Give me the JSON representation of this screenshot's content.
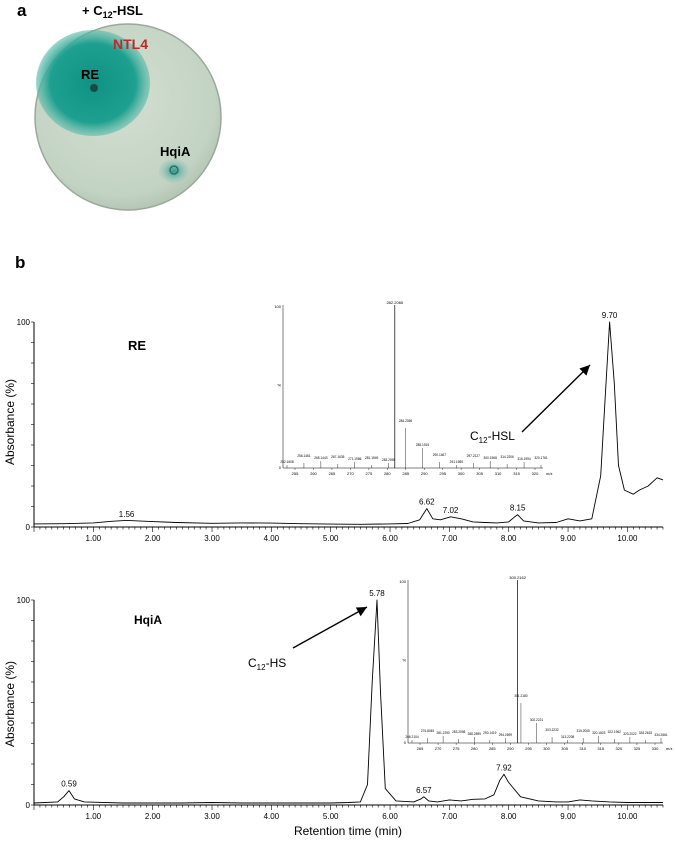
{
  "panel_a": {
    "letter": "a",
    "header_prefix": "+ C",
    "header_sub": "12",
    "header_suffix": "-HSL",
    "strain_label": "NTL4",
    "strain_color": "#c0262c",
    "samples": [
      "RE",
      "HqiA"
    ],
    "colors": {
      "agar": "#c6d6c6",
      "stain": "#1a9c8c"
    }
  },
  "panel_b": {
    "letter": "b",
    "xlabel": "Retention time (min)",
    "ylabel": "Absorbance (%)"
  },
  "chart_data": [
    {
      "type": "line",
      "label": "RE",
      "xlim": [
        0,
        10.6
      ],
      "ylim": [
        0,
        100
      ],
      "x_ticks": [
        1,
        2,
        3,
        4,
        5,
        6,
        7,
        8,
        9,
        10
      ],
      "x_tick_labels": [
        "1.00",
        "2.00",
        "3.00",
        "4.00",
        "5.00",
        "6.00",
        "7.00",
        "8.00",
        "9.00",
        "10.00"
      ],
      "y_tick_labels": [
        "100",
        "0"
      ],
      "peaks": [
        {
          "x": 1.56,
          "y": 3,
          "label": "1.56"
        },
        {
          "x": 6.62,
          "y": 9,
          "label": "6.62"
        },
        {
          "x": 7.02,
          "y": 5,
          "label": "7.02"
        },
        {
          "x": 8.15,
          "y": 6,
          "label": "8.15"
        },
        {
          "x": 9.7,
          "y": 100,
          "label": "9.70"
        }
      ],
      "annotation": {
        "text_main": "C",
        "text_sub": "12",
        "text_end": "-HSL",
        "x": 9.7
      },
      "trace": [
        [
          0,
          1.5
        ],
        [
          0.5,
          1.6
        ],
        [
          1.0,
          2.0
        ],
        [
          1.3,
          2.8
        ],
        [
          1.56,
          3.2
        ],
        [
          1.9,
          2.8
        ],
        [
          2.4,
          2.2
        ],
        [
          3.0,
          1.8
        ],
        [
          3.5,
          2.0
        ],
        [
          4.0,
          1.9
        ],
        [
          4.5,
          1.6
        ],
        [
          5.0,
          1.4
        ],
        [
          5.5,
          1.3
        ],
        [
          6.0,
          1.5
        ],
        [
          6.3,
          1.7
        ],
        [
          6.5,
          3.5
        ],
        [
          6.62,
          9
        ],
        [
          6.72,
          4
        ],
        [
          6.85,
          3.5
        ],
        [
          7.02,
          5
        ],
        [
          7.2,
          4
        ],
        [
          7.4,
          2.5
        ],
        [
          7.6,
          2.2
        ],
        [
          7.8,
          2
        ],
        [
          8.0,
          2.5
        ],
        [
          8.1,
          5
        ],
        [
          8.15,
          6
        ],
        [
          8.25,
          3
        ],
        [
          8.5,
          2
        ],
        [
          8.8,
          2.2
        ],
        [
          9.0,
          4
        ],
        [
          9.2,
          3
        ],
        [
          9.4,
          4
        ],
        [
          9.55,
          25
        ],
        [
          9.62,
          60
        ],
        [
          9.7,
          100
        ],
        [
          9.78,
          70
        ],
        [
          9.85,
          30
        ],
        [
          9.95,
          18
        ],
        [
          10.1,
          16
        ],
        [
          10.2,
          18
        ],
        [
          10.35,
          20
        ],
        [
          10.5,
          24
        ],
        [
          10.6,
          23
        ]
      ],
      "inset": {
        "x_tick_labels": [
          "255",
          "260",
          "265",
          "270",
          "275",
          "280",
          "285",
          "290",
          "295",
          "300",
          "305",
          "310",
          "315",
          "320"
        ],
        "y_tick_labels": [
          "100",
          "%",
          "0"
        ],
        "main_peak_label": "282.2065",
        "peak_labels": [
          "252.1608",
          "256.1461",
          "265.1443",
          "267.1635",
          "271.1986",
          "281.1949",
          "283.2098",
          "284.2056",
          "285.1915",
          "290.1467",
          "291.1985",
          "297.2127",
          "300.1968",
          "314.2206",
          "316.1994",
          "320.1761"
        ],
        "unit": "m/z"
      }
    },
    {
      "type": "line",
      "label": "HqiA",
      "xlim": [
        0,
        10.6
      ],
      "ylim": [
        0,
        100
      ],
      "x_ticks": [
        1,
        2,
        3,
        4,
        5,
        6,
        7,
        8,
        9,
        10
      ],
      "x_tick_labels": [
        "1.00",
        "2.00",
        "3.00",
        "4.00",
        "5.00",
        "6.00",
        "7.00",
        "8.00",
        "9.00",
        "10.00"
      ],
      "y_tick_labels": [
        "100",
        "0"
      ],
      "peaks": [
        {
          "x": 0.59,
          "y": 7,
          "label": "0.59"
        },
        {
          "x": 5.78,
          "y": 100,
          "label": "5.78"
        },
        {
          "x": 6.57,
          "y": 4,
          "label": "6.57"
        },
        {
          "x": 7.92,
          "y": 15,
          "label": "7.92"
        }
      ],
      "annotation": {
        "text_main": "C",
        "text_sub": "12",
        "text_end": "-HS",
        "x": 5.78
      },
      "trace": [
        [
          0,
          1
        ],
        [
          0.4,
          1.5
        ],
        [
          0.5,
          4
        ],
        [
          0.59,
          7
        ],
        [
          0.68,
          3
        ],
        [
          0.85,
          1.5
        ],
        [
          1.5,
          1
        ],
        [
          2.5,
          1
        ],
        [
          3.0,
          1.2
        ],
        [
          3.5,
          1
        ],
        [
          4.0,
          1
        ],
        [
          4.5,
          1
        ],
        [
          5.0,
          1
        ],
        [
          5.3,
          1.2
        ],
        [
          5.5,
          1.5
        ],
        [
          5.62,
          10
        ],
        [
          5.7,
          60
        ],
        [
          5.78,
          100
        ],
        [
          5.84,
          55
        ],
        [
          5.92,
          8
        ],
        [
          6.1,
          2
        ],
        [
          6.4,
          1.5
        ],
        [
          6.52,
          3
        ],
        [
          6.57,
          4
        ],
        [
          6.65,
          2
        ],
        [
          6.8,
          1.5
        ],
        [
          7.0,
          2.5
        ],
        [
          7.2,
          2
        ],
        [
          7.4,
          2.8
        ],
        [
          7.6,
          3
        ],
        [
          7.75,
          5
        ],
        [
          7.85,
          12
        ],
        [
          7.92,
          15
        ],
        [
          8.0,
          11
        ],
        [
          8.2,
          4
        ],
        [
          8.5,
          2
        ],
        [
          8.8,
          1.5
        ],
        [
          9.0,
          1.5
        ],
        [
          9.2,
          2.5
        ],
        [
          9.4,
          2
        ],
        [
          9.7,
          1.5
        ],
        [
          10.0,
          1.2
        ],
        [
          10.6,
          1.2
        ]
      ],
      "inset": {
        "x_tick_labels": [
          "265",
          "270",
          "275",
          "280",
          "285",
          "290",
          "295",
          "300",
          "305",
          "310",
          "315",
          "320",
          "325",
          "330"
        ],
        "y_tick_labels": [
          "100",
          "%",
          "0"
        ],
        "main_peak_label": "300.2162",
        "peak_labels": [
          "266.2104",
          "276.8045",
          "281.2290",
          "283.2098",
          "288.2899",
          "290.1419",
          "294.2699",
          "301.2180",
          "302.2221",
          "303.2232",
          "313.2208",
          "315.2005",
          "320.1823",
          "322.1962",
          "323.2022",
          "328.2615",
          "334.2661"
        ],
        "unit": "m/z"
      }
    }
  ]
}
